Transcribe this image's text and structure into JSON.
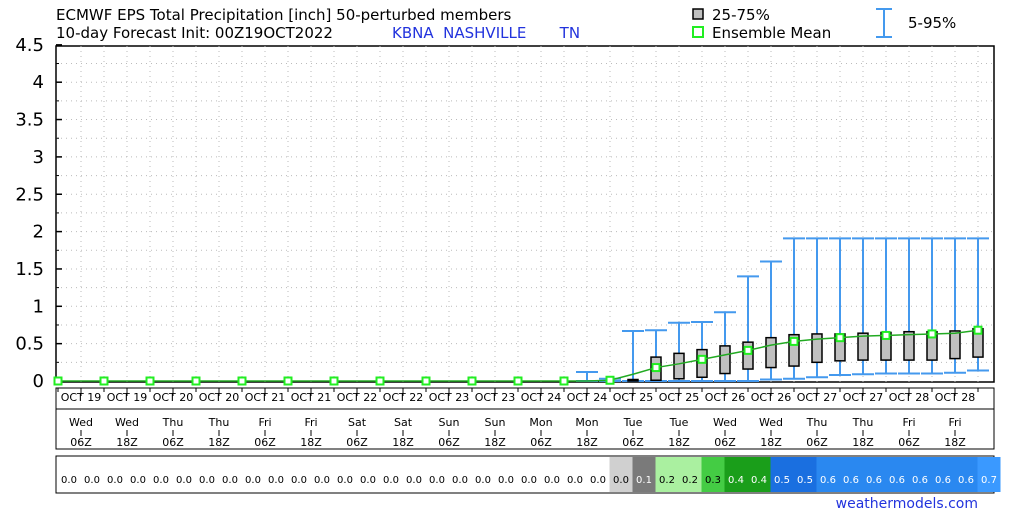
{
  "header": {
    "title_line1": "ECMWF EPS Total Precipitation [inch]  50-perturbed members",
    "title_line2": "10-day Forecast Init: 00Z19OCT2022",
    "station": "KBNA  NASHVILLE       TN"
  },
  "legend": {
    "box_label": "25-75%",
    "mean_label": "Ensemble Mean",
    "whisker_label": "5-95%"
  },
  "colors": {
    "box_fill": "#c0c0c0",
    "mean_line": "#22aa22",
    "mean_marker": "#22ee22",
    "whisker": "#4499ee",
    "grid": "#bbbbbb",
    "credit": "#2233dd"
  },
  "credit": "weathermodels.com",
  "chart_data": {
    "type": "box",
    "title": "ECMWF EPS Total Precipitation [inch]  50-perturbed members",
    "ylim": [
      0,
      4.5
    ],
    "y_ticks": [
      "0",
      "0.5",
      "1",
      "1.5",
      "2",
      "2.5",
      "3",
      "3.5",
      "4",
      "4.5"
    ],
    "grid": true,
    "x_date_labels": [
      "OCT 19",
      "OCT 19",
      "OCT 20",
      "OCT 20",
      "OCT 21",
      "OCT 21",
      "OCT 22",
      "OCT 22",
      "OCT 23",
      "OCT 23",
      "OCT 24",
      "OCT 24",
      "OCT 25",
      "OCT 25",
      "OCT 26",
      "OCT 26",
      "OCT 27",
      "OCT 27",
      "OCT 28",
      "OCT 28"
    ],
    "x_day_labels": [
      "Wed",
      "Wed",
      "Thu",
      "Thu",
      "Fri",
      "Fri",
      "Sat",
      "Sat",
      "Sun",
      "Sun",
      "Mon",
      "Mon",
      "Tue",
      "Tue",
      "Wed",
      "Wed",
      "Thu",
      "Thu",
      "Fri",
      "Fri"
    ],
    "x_hour_labels": [
      "06Z",
      "18Z",
      "06Z",
      "18Z",
      "06Z",
      "18Z",
      "06Z",
      "18Z",
      "06Z",
      "18Z",
      "06Z",
      "18Z",
      "06Z",
      "18Z",
      "06Z",
      "18Z",
      "06Z",
      "18Z",
      "06Z",
      "18Z"
    ],
    "mean_labels": [
      "0.0",
      "0.0",
      "0.0",
      "0.0",
      "0.0",
      "0.0",
      "0.0",
      "0.0",
      "0.0",
      "0.0",
      "0.0",
      "0.0",
      "0.0",
      "0.0",
      "0.0",
      "0.0",
      "0.0",
      "0.0",
      "0.0",
      "0.0",
      "0.0",
      "0.0",
      "0.0",
      "0.0",
      "0.0",
      "0.1",
      "0.2",
      "0.2",
      "0.3",
      "0.4",
      "0.4",
      "0.5",
      "0.5",
      "0.6",
      "0.6",
      "0.6",
      "0.6",
      "0.6",
      "0.6",
      "0.6",
      "0.7"
    ],
    "series": {
      "p5": [
        0,
        0,
        0,
        0,
        0,
        0,
        0,
        0,
        0,
        0,
        0,
        0,
        0,
        0,
        0,
        0,
        0,
        0,
        0,
        0,
        0,
        0,
        0,
        0,
        0,
        0,
        0,
        0,
        0,
        0,
        0,
        0.02,
        0.03,
        0.05,
        0.08,
        0.09,
        0.1,
        0.1,
        0.1,
        0.11,
        0.14
      ],
      "p25": [
        0,
        0,
        0,
        0,
        0,
        0,
        0,
        0,
        0,
        0,
        0,
        0,
        0,
        0,
        0,
        0,
        0,
        0,
        0,
        0,
        0,
        0,
        0,
        0,
        0,
        0,
        0.01,
        0.03,
        0.05,
        0.1,
        0.16,
        0.18,
        0.2,
        0.25,
        0.27,
        0.28,
        0.28,
        0.28,
        0.28,
        0.3,
        0.32
      ],
      "p75": [
        0,
        0,
        0,
        0,
        0,
        0,
        0,
        0,
        0,
        0,
        0,
        0,
        0,
        0,
        0,
        0,
        0,
        0,
        0,
        0,
        0,
        0,
        0,
        0,
        0,
        0.02,
        0.32,
        0.37,
        0.42,
        0.47,
        0.52,
        0.58,
        0.62,
        0.63,
        0.63,
        0.64,
        0.65,
        0.66,
        0.66,
        0.67,
        0.7
      ],
      "p95": [
        0,
        0,
        0,
        0,
        0,
        0,
        0,
        0,
        0,
        0,
        0,
        0,
        0,
        0,
        0,
        0,
        0,
        0,
        0,
        0,
        0,
        0,
        0,
        0.12,
        0.03,
        0.67,
        0.68,
        0.78,
        0.79,
        0.92,
        1.4,
        1.6,
        1.91,
        1.91,
        1.91,
        1.91,
        1.91,
        1.91,
        1.91,
        1.91,
        1.91
      ],
      "mean": [
        0,
        0,
        0,
        0,
        0,
        0,
        0,
        0,
        0,
        0,
        0,
        0,
        0,
        0,
        0,
        0,
        0,
        0,
        0,
        0,
        0,
        0,
        0,
        0,
        0.01,
        0.09,
        0.18,
        0.23,
        0.29,
        0.35,
        0.41,
        0.48,
        0.53,
        0.56,
        0.58,
        0.6,
        0.61,
        0.62,
        0.63,
        0.64,
        0.68
      ]
    }
  }
}
